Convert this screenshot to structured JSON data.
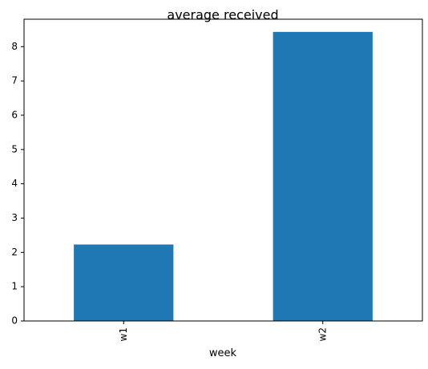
{
  "chart_data": {
    "type": "bar",
    "title": "average received",
    "xlabel": "week",
    "ylabel": "",
    "categories": [
      "w1",
      "w2"
    ],
    "values": [
      2.23,
      8.43
    ],
    "ylim": [
      0,
      8.8
    ],
    "yticks": [
      0,
      1,
      2,
      3,
      4,
      5,
      6,
      7,
      8
    ],
    "bar_color": "#1f77b4",
    "grid": false,
    "legend": "none"
  }
}
